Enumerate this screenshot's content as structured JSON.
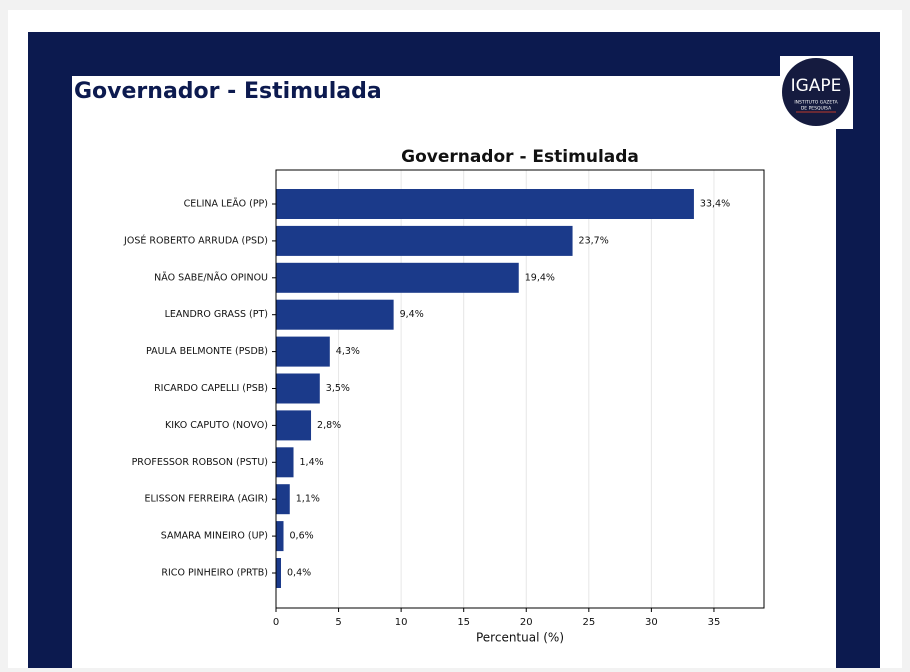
{
  "header": {
    "title": "Governador - Estimulada"
  },
  "logo": {
    "name": "IGAPE",
    "line1": "INSTITUTO GAZETA",
    "line2": "DE PESQUISA"
  },
  "chart_data": {
    "type": "barh",
    "title": "Governador - Estimulada",
    "x_label": "Percentual (%)",
    "categories": [
      "CELINA LEÃO (PP)",
      "JOSÉ ROBERTO ARRUDA (PSD)",
      "NÃO SABE/NÃO OPINOU",
      "LEANDRO GRASS (PT)",
      "PAULA BELMONTE (PSDB)",
      "RICARDO CAPELLI (PSB)",
      "KIKO CAPUTO (NOVO)",
      "PROFESSOR ROBSON (PSTU)",
      "ELISSON FERREIRA (AGIR)",
      "SAMARA MINEIRO (UP)",
      "RICO PINHEIRO (PRTB)"
    ],
    "values": [
      33.4,
      23.7,
      19.4,
      9.4,
      4.3,
      3.5,
      2.8,
      1.4,
      1.1,
      0.6,
      0.4
    ],
    "value_labels": [
      "33,4%",
      "23,7%",
      "19,4%",
      "9,4%",
      "4,3%",
      "3,5%",
      "2,8%",
      "1,4%",
      "1,1%",
      "0,6%",
      "0,4%"
    ],
    "color": "#1b3a8a",
    "xlim": [
      0,
      39
    ],
    "xticks": [
      0,
      5,
      10,
      15,
      20,
      25,
      30,
      35
    ],
    "grid": true
  }
}
